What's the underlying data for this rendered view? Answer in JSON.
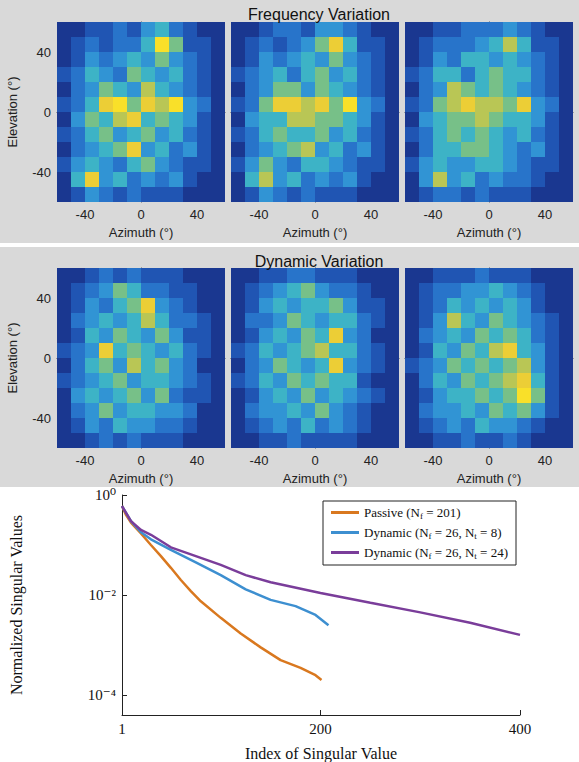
{
  "chart_data": [
    {
      "type": "heatmap",
      "title": "Frequency Variation",
      "xlabel": "Azimuth (°)",
      "ylabel": "Elevation (°)",
      "xlim": [
        -60,
        60
      ],
      "xticks": [
        -40,
        0,
        40
      ],
      "ylim": [
        -60,
        60
      ],
      "yticks": [
        -40,
        0,
        40
      ],
      "zlim": [
        0,
        9
      ],
      "panels": [
        [
          [
            1,
            1,
            2,
            2,
            3,
            2,
            4,
            5,
            3,
            2,
            1,
            1
          ],
          [
            1,
            2,
            3,
            2,
            3,
            3,
            5,
            9,
            6,
            2,
            2,
            1
          ],
          [
            1,
            2,
            4,
            3,
            4,
            5,
            4,
            6,
            4,
            3,
            2,
            1
          ],
          [
            2,
            3,
            5,
            4,
            3,
            6,
            5,
            4,
            5,
            3,
            2,
            1
          ],
          [
            1,
            3,
            4,
            6,
            5,
            4,
            7,
            5,
            4,
            3,
            2,
            1
          ],
          [
            2,
            3,
            5,
            8,
            9,
            6,
            8,
            7,
            9,
            4,
            3,
            1
          ],
          [
            1,
            4,
            6,
            5,
            7,
            8,
            5,
            6,
            5,
            4,
            2,
            1
          ],
          [
            2,
            3,
            5,
            6,
            4,
            5,
            6,
            4,
            5,
            3,
            2,
            1
          ],
          [
            1,
            3,
            4,
            5,
            6,
            8,
            4,
            5,
            3,
            4,
            2,
            1
          ],
          [
            2,
            4,
            5,
            4,
            3,
            5,
            6,
            4,
            3,
            2,
            2,
            1
          ],
          [
            1,
            5,
            8,
            4,
            5,
            3,
            4,
            3,
            4,
            2,
            1,
            1
          ],
          [
            1,
            2,
            4,
            3,
            2,
            3,
            2,
            2,
            2,
            1,
            1,
            1
          ]
        ],
        [
          [
            1,
            1,
            2,
            3,
            3,
            2,
            4,
            4,
            3,
            2,
            1,
            1
          ],
          [
            1,
            2,
            3,
            2,
            3,
            4,
            6,
            8,
            5,
            2,
            2,
            1
          ],
          [
            1,
            2,
            4,
            3,
            4,
            5,
            4,
            6,
            4,
            3,
            2,
            1
          ],
          [
            2,
            3,
            4,
            5,
            3,
            5,
            6,
            4,
            5,
            3,
            2,
            1
          ],
          [
            1,
            3,
            4,
            6,
            6,
            4,
            6,
            5,
            4,
            3,
            2,
            1
          ],
          [
            2,
            3,
            6,
            8,
            8,
            7,
            8,
            6,
            9,
            4,
            3,
            1
          ],
          [
            1,
            4,
            5,
            5,
            7,
            7,
            6,
            6,
            5,
            4,
            2,
            1
          ],
          [
            2,
            3,
            5,
            6,
            5,
            5,
            6,
            4,
            5,
            3,
            2,
            1
          ],
          [
            1,
            3,
            4,
            5,
            6,
            7,
            4,
            5,
            3,
            4,
            2,
            1
          ],
          [
            2,
            4,
            6,
            4,
            3,
            5,
            5,
            4,
            3,
            2,
            2,
            1
          ],
          [
            1,
            5,
            7,
            4,
            5,
            3,
            4,
            3,
            4,
            2,
            1,
            1
          ],
          [
            1,
            2,
            4,
            3,
            2,
            3,
            2,
            2,
            2,
            1,
            1,
            1
          ]
        ],
        [
          [
            1,
            1,
            2,
            2,
            3,
            3,
            3,
            4,
            3,
            2,
            1,
            1
          ],
          [
            1,
            2,
            3,
            3,
            3,
            4,
            5,
            7,
            5,
            2,
            2,
            1
          ],
          [
            1,
            2,
            4,
            3,
            5,
            5,
            4,
            5,
            4,
            3,
            2,
            1
          ],
          [
            2,
            3,
            5,
            5,
            3,
            5,
            6,
            5,
            5,
            3,
            2,
            1
          ],
          [
            1,
            3,
            4,
            7,
            6,
            5,
            6,
            5,
            4,
            3,
            2,
            1
          ],
          [
            2,
            3,
            6,
            7,
            8,
            7,
            7,
            6,
            8,
            4,
            3,
            1
          ],
          [
            1,
            4,
            5,
            6,
            6,
            7,
            6,
            5,
            5,
            4,
            2,
            1
          ],
          [
            2,
            3,
            5,
            6,
            5,
            6,
            5,
            4,
            5,
            3,
            2,
            1
          ],
          [
            1,
            3,
            5,
            5,
            6,
            6,
            5,
            4,
            3,
            4,
            2,
            1
          ],
          [
            2,
            4,
            5,
            4,
            4,
            5,
            5,
            4,
            3,
            2,
            2,
            1
          ],
          [
            1,
            4,
            7,
            4,
            5,
            3,
            4,
            3,
            3,
            2,
            1,
            1
          ],
          [
            1,
            2,
            3,
            3,
            2,
            3,
            2,
            2,
            2,
            1,
            1,
            1
          ]
        ]
      ]
    },
    {
      "type": "heatmap",
      "title": "Dynamic Variation",
      "xlabel": "Azimuth (°)",
      "ylabel": "Elevation (°)",
      "xlim": [
        -60,
        60
      ],
      "xticks": [
        -40,
        0,
        40
      ],
      "ylim": [
        -60,
        60
      ],
      "yticks": [
        -40,
        0,
        40
      ],
      "zlim": [
        0,
        9
      ],
      "panels": [
        [
          [
            1,
            1,
            2,
            3,
            2,
            3,
            2,
            2,
            2,
            1,
            1,
            1
          ],
          [
            1,
            2,
            3,
            4,
            6,
            5,
            3,
            3,
            2,
            2,
            1,
            1
          ],
          [
            1,
            2,
            4,
            3,
            5,
            6,
            8,
            4,
            3,
            2,
            1,
            1
          ],
          [
            1,
            3,
            4,
            5,
            4,
            5,
            7,
            5,
            3,
            3,
            2,
            1
          ],
          [
            1,
            2,
            5,
            4,
            6,
            5,
            4,
            6,
            4,
            2,
            2,
            1
          ],
          [
            2,
            3,
            4,
            8,
            5,
            6,
            5,
            4,
            5,
            3,
            2,
            1
          ],
          [
            1,
            3,
            5,
            6,
            4,
            7,
            5,
            6,
            4,
            3,
            1,
            1
          ],
          [
            2,
            3,
            4,
            5,
            6,
            4,
            5,
            5,
            4,
            3,
            2,
            1
          ],
          [
            1,
            4,
            5,
            4,
            5,
            6,
            4,
            6,
            3,
            2,
            2,
            1
          ],
          [
            1,
            3,
            4,
            6,
            4,
            5,
            5,
            4,
            4,
            3,
            1,
            1
          ],
          [
            1,
            2,
            4,
            3,
            5,
            4,
            4,
            3,
            3,
            2,
            1,
            1
          ],
          [
            1,
            1,
            2,
            3,
            2,
            3,
            2,
            2,
            2,
            1,
            1,
            1
          ]
        ],
        [
          [
            1,
            1,
            2,
            2,
            3,
            3,
            2,
            2,
            2,
            1,
            1,
            1
          ],
          [
            1,
            2,
            3,
            4,
            5,
            6,
            4,
            3,
            3,
            2,
            1,
            1
          ],
          [
            1,
            2,
            4,
            5,
            4,
            5,
            5,
            6,
            4,
            2,
            2,
            1
          ],
          [
            1,
            3,
            3,
            4,
            6,
            5,
            4,
            5,
            5,
            3,
            2,
            1
          ],
          [
            1,
            2,
            4,
            5,
            4,
            6,
            5,
            8,
            4,
            3,
            1,
            1
          ],
          [
            2,
            3,
            5,
            4,
            5,
            6,
            7,
            5,
            5,
            3,
            2,
            1
          ],
          [
            1,
            3,
            4,
            6,
            5,
            4,
            5,
            8,
            4,
            3,
            2,
            1
          ],
          [
            2,
            3,
            5,
            4,
            6,
            5,
            6,
            5,
            5,
            2,
            1,
            1
          ],
          [
            1,
            2,
            4,
            5,
            4,
            6,
            4,
            5,
            4,
            3,
            2,
            1
          ],
          [
            1,
            3,
            4,
            4,
            5,
            4,
            6,
            4,
            3,
            2,
            1,
            1
          ],
          [
            1,
            2,
            3,
            4,
            3,
            5,
            3,
            4,
            3,
            2,
            1,
            1
          ],
          [
            1,
            1,
            2,
            2,
            3,
            2,
            2,
            2,
            2,
            1,
            1,
            1
          ]
        ],
        [
          [
            1,
            1,
            2,
            2,
            2,
            3,
            2,
            2,
            2,
            1,
            1,
            1
          ],
          [
            1,
            2,
            3,
            3,
            4,
            4,
            5,
            4,
            3,
            2,
            1,
            1
          ],
          [
            1,
            2,
            3,
            5,
            4,
            5,
            4,
            5,
            4,
            2,
            1,
            1
          ],
          [
            1,
            2,
            4,
            7,
            5,
            4,
            6,
            5,
            4,
            3,
            2,
            1
          ],
          [
            1,
            3,
            4,
            5,
            4,
            6,
            5,
            6,
            5,
            3,
            2,
            1
          ],
          [
            1,
            2,
            5,
            4,
            6,
            5,
            7,
            8,
            5,
            4,
            2,
            1
          ],
          [
            2,
            3,
            4,
            6,
            5,
            6,
            5,
            6,
            7,
            4,
            2,
            1
          ],
          [
            1,
            3,
            5,
            4,
            6,
            5,
            6,
            7,
            8,
            5,
            2,
            1
          ],
          [
            1,
            2,
            4,
            5,
            5,
            6,
            5,
            6,
            9,
            6,
            2,
            1
          ],
          [
            1,
            3,
            4,
            4,
            5,
            4,
            6,
            5,
            6,
            4,
            2,
            1
          ],
          [
            1,
            2,
            3,
            4,
            3,
            5,
            4,
            4,
            3,
            2,
            1,
            1
          ],
          [
            1,
            1,
            2,
            2,
            3,
            2,
            2,
            3,
            2,
            1,
            1,
            1
          ]
        ]
      ]
    },
    {
      "type": "line",
      "xlabel": "Index of Singular Value",
      "ylabel": "Normalized Singular Values",
      "xlim": [
        1,
        400
      ],
      "xticks": [
        1,
        200,
        400
      ],
      "ylim": [
        4e-05,
        1
      ],
      "yticks": [
        {
          "value": 1,
          "label": "10⁰"
        },
        {
          "value": 0.01,
          "label": "10⁻²"
        },
        {
          "value": 0.0001,
          "label": "10⁻⁴"
        }
      ],
      "log": "y",
      "grid": false,
      "legend": "upper right",
      "series": [
        {
          "name": "Passive (Nf = 201)",
          "color": "#d9781f",
          "x": [
            1,
            5,
            10,
            20,
            30,
            40,
            50,
            60,
            70,
            80,
            100,
            120,
            140,
            160,
            180,
            195,
            201
          ],
          "values": [
            0.6,
            0.4,
            0.28,
            0.17,
            0.1,
            0.06,
            0.035,
            0.02,
            0.012,
            0.0075,
            0.0035,
            0.0017,
            0.0009,
            0.0005,
            0.00035,
            0.00025,
            0.0002
          ]
        },
        {
          "name": "Dynamic (Nf = 26, Nt = 8)",
          "color": "#3d8fd0",
          "x": [
            1,
            10,
            20,
            30,
            50,
            75,
            100,
            125,
            150,
            175,
            195,
            208
          ],
          "values": [
            0.6,
            0.3,
            0.18,
            0.13,
            0.08,
            0.045,
            0.025,
            0.013,
            0.008,
            0.006,
            0.004,
            0.0025
          ]
        },
        {
          "name": "Dynamic (Nf = 26, Nt = 24)",
          "color": "#7a3d9a",
          "x": [
            1,
            10,
            20,
            30,
            50,
            75,
            100,
            125,
            150,
            200,
            250,
            300,
            350,
            400
          ],
          "values": [
            0.6,
            0.3,
            0.2,
            0.16,
            0.09,
            0.06,
            0.04,
            0.025,
            0.018,
            0.011,
            0.007,
            0.0045,
            0.0028,
            0.0016
          ]
        }
      ]
    }
  ]
}
